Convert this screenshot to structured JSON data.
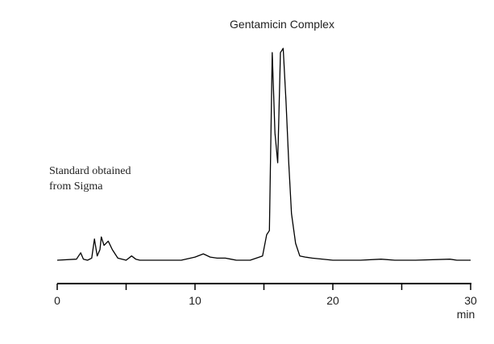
{
  "chart_data": {
    "type": "line",
    "title": "",
    "xlabel": "min",
    "ylabel": "",
    "xlim": [
      0,
      30
    ],
    "ylim": [
      0,
      100
    ],
    "x_ticks": [
      0,
      5,
      10,
      15,
      20,
      25,
      30
    ],
    "x_tick_labels": [
      "0",
      "10",
      "20",
      "30"
    ],
    "x_tick_label_values": [
      0,
      10,
      20,
      30
    ],
    "grid": false,
    "annotations": {
      "peak_label": "Gentamicin Complex",
      "note_line1": "Standard obtained",
      "note_line2": "from Sigma"
    },
    "series": [
      {
        "color": "#000000",
        "x": [
          0,
          1.4,
          1.7,
          1.9,
          2.2,
          2.5,
          2.7,
          2.9,
          3.1,
          3.2,
          3.4,
          3.7,
          4.0,
          4.4,
          5.0,
          5.4,
          5.7,
          6.0,
          7.0,
          8.0,
          9.0,
          10.0,
          10.6,
          11.1,
          11.6,
          12.2,
          12.6,
          13.0,
          14.0,
          14.9,
          15.2,
          15.4,
          15.6,
          15.8,
          16.0,
          16.2,
          16.4,
          16.6,
          16.8,
          17.0,
          17.3,
          17.6,
          18.0,
          18.5,
          20.0,
          22.0,
          23.5,
          24.5,
          26.0,
          28.5,
          29.0,
          30.0
        ],
        "y": [
          0,
          0.5,
          3.5,
          0.5,
          0,
          1,
          10,
          2,
          5,
          11,
          7,
          9,
          5,
          1,
          0,
          2,
          0.5,
          0,
          0,
          0,
          0,
          1.5,
          3,
          1.5,
          1,
          1,
          0.5,
          0,
          0,
          2,
          12,
          14,
          98,
          60,
          46,
          98,
          100,
          75,
          46,
          22,
          8,
          2,
          1.5,
          1,
          0,
          0,
          0.5,
          0,
          0,
          0.5,
          0,
          0
        ]
      }
    ]
  }
}
